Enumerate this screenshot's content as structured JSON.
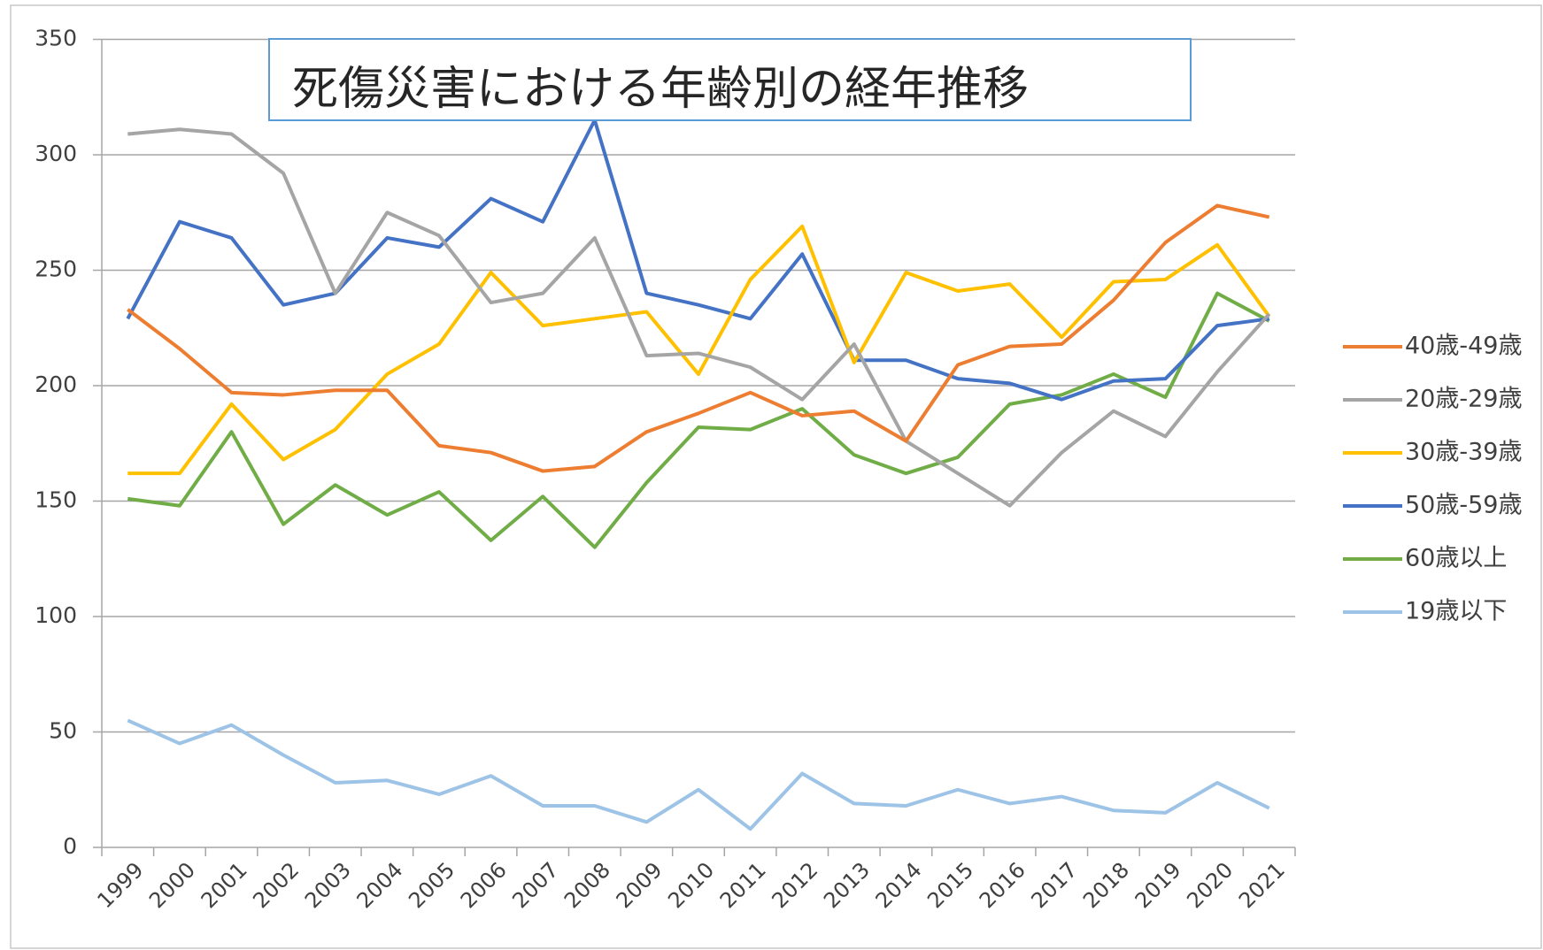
{
  "chart_data": {
    "type": "line",
    "title": "死傷災害における年齢別の経年推移",
    "categories": [
      "1999",
      "2000",
      "2001",
      "2002",
      "2003",
      "2004",
      "2005",
      "2006",
      "2007",
      "2008",
      "2009",
      "2010",
      "2011",
      "2012",
      "2013",
      "2014",
      "2015",
      "2016",
      "2017",
      "2018",
      "2019",
      "2020",
      "2021"
    ],
    "series": [
      {
        "name": "40歳-49歳",
        "color": "#ed7d31",
        "values": [
          233,
          216,
          197,
          196,
          198,
          198,
          174,
          171,
          163,
          165,
          180,
          188,
          197,
          187,
          189,
          176,
          209,
          217,
          218,
          237,
          262,
          278,
          273
        ]
      },
      {
        "name": "20歳-29歳",
        "color": "#a5a5a5",
        "values": [
          309,
          311,
          309,
          292,
          240,
          275,
          265,
          236,
          240,
          264,
          213,
          214,
          208,
          194,
          218,
          176,
          162,
          148,
          171,
          189,
          178,
          206,
          231
        ]
      },
      {
        "name": "30歳-39歳",
        "color": "#ffc000",
        "values": [
          162,
          162,
          192,
          168,
          181,
          205,
          218,
          249,
          226,
          229,
          232,
          205,
          246,
          269,
          210,
          249,
          241,
          244,
          221,
          245,
          246,
          261,
          230
        ]
      },
      {
        "name": "50歳-59歳",
        "color": "#4472c4",
        "values": [
          229,
          271,
          264,
          235,
          240,
          264,
          260,
          281,
          271,
          315,
          240,
          235,
          229,
          257,
          211,
          211,
          203,
          201,
          194,
          202,
          203,
          226,
          229
        ]
      },
      {
        "name": "60歳以上",
        "color": "#70ad47",
        "values": [
          151,
          148,
          180,
          140,
          157,
          144,
          154,
          133,
          152,
          130,
          158,
          182,
          181,
          190,
          170,
          162,
          169,
          192,
          196,
          205,
          195,
          240,
          228
        ]
      },
      {
        "name": "19歳以下",
        "color": "#9dc3e6",
        "values": [
          55,
          45,
          53,
          40,
          28,
          29,
          23,
          31,
          18,
          18,
          11,
          25,
          8,
          32,
          19,
          18,
          25,
          19,
          22,
          16,
          15,
          28,
          17
        ]
      }
    ],
    "ylim": [
      0,
      350
    ],
    "yticks": [
      0,
      50,
      100,
      150,
      200,
      250,
      300,
      350
    ],
    "grid": true,
    "legend": "right"
  }
}
